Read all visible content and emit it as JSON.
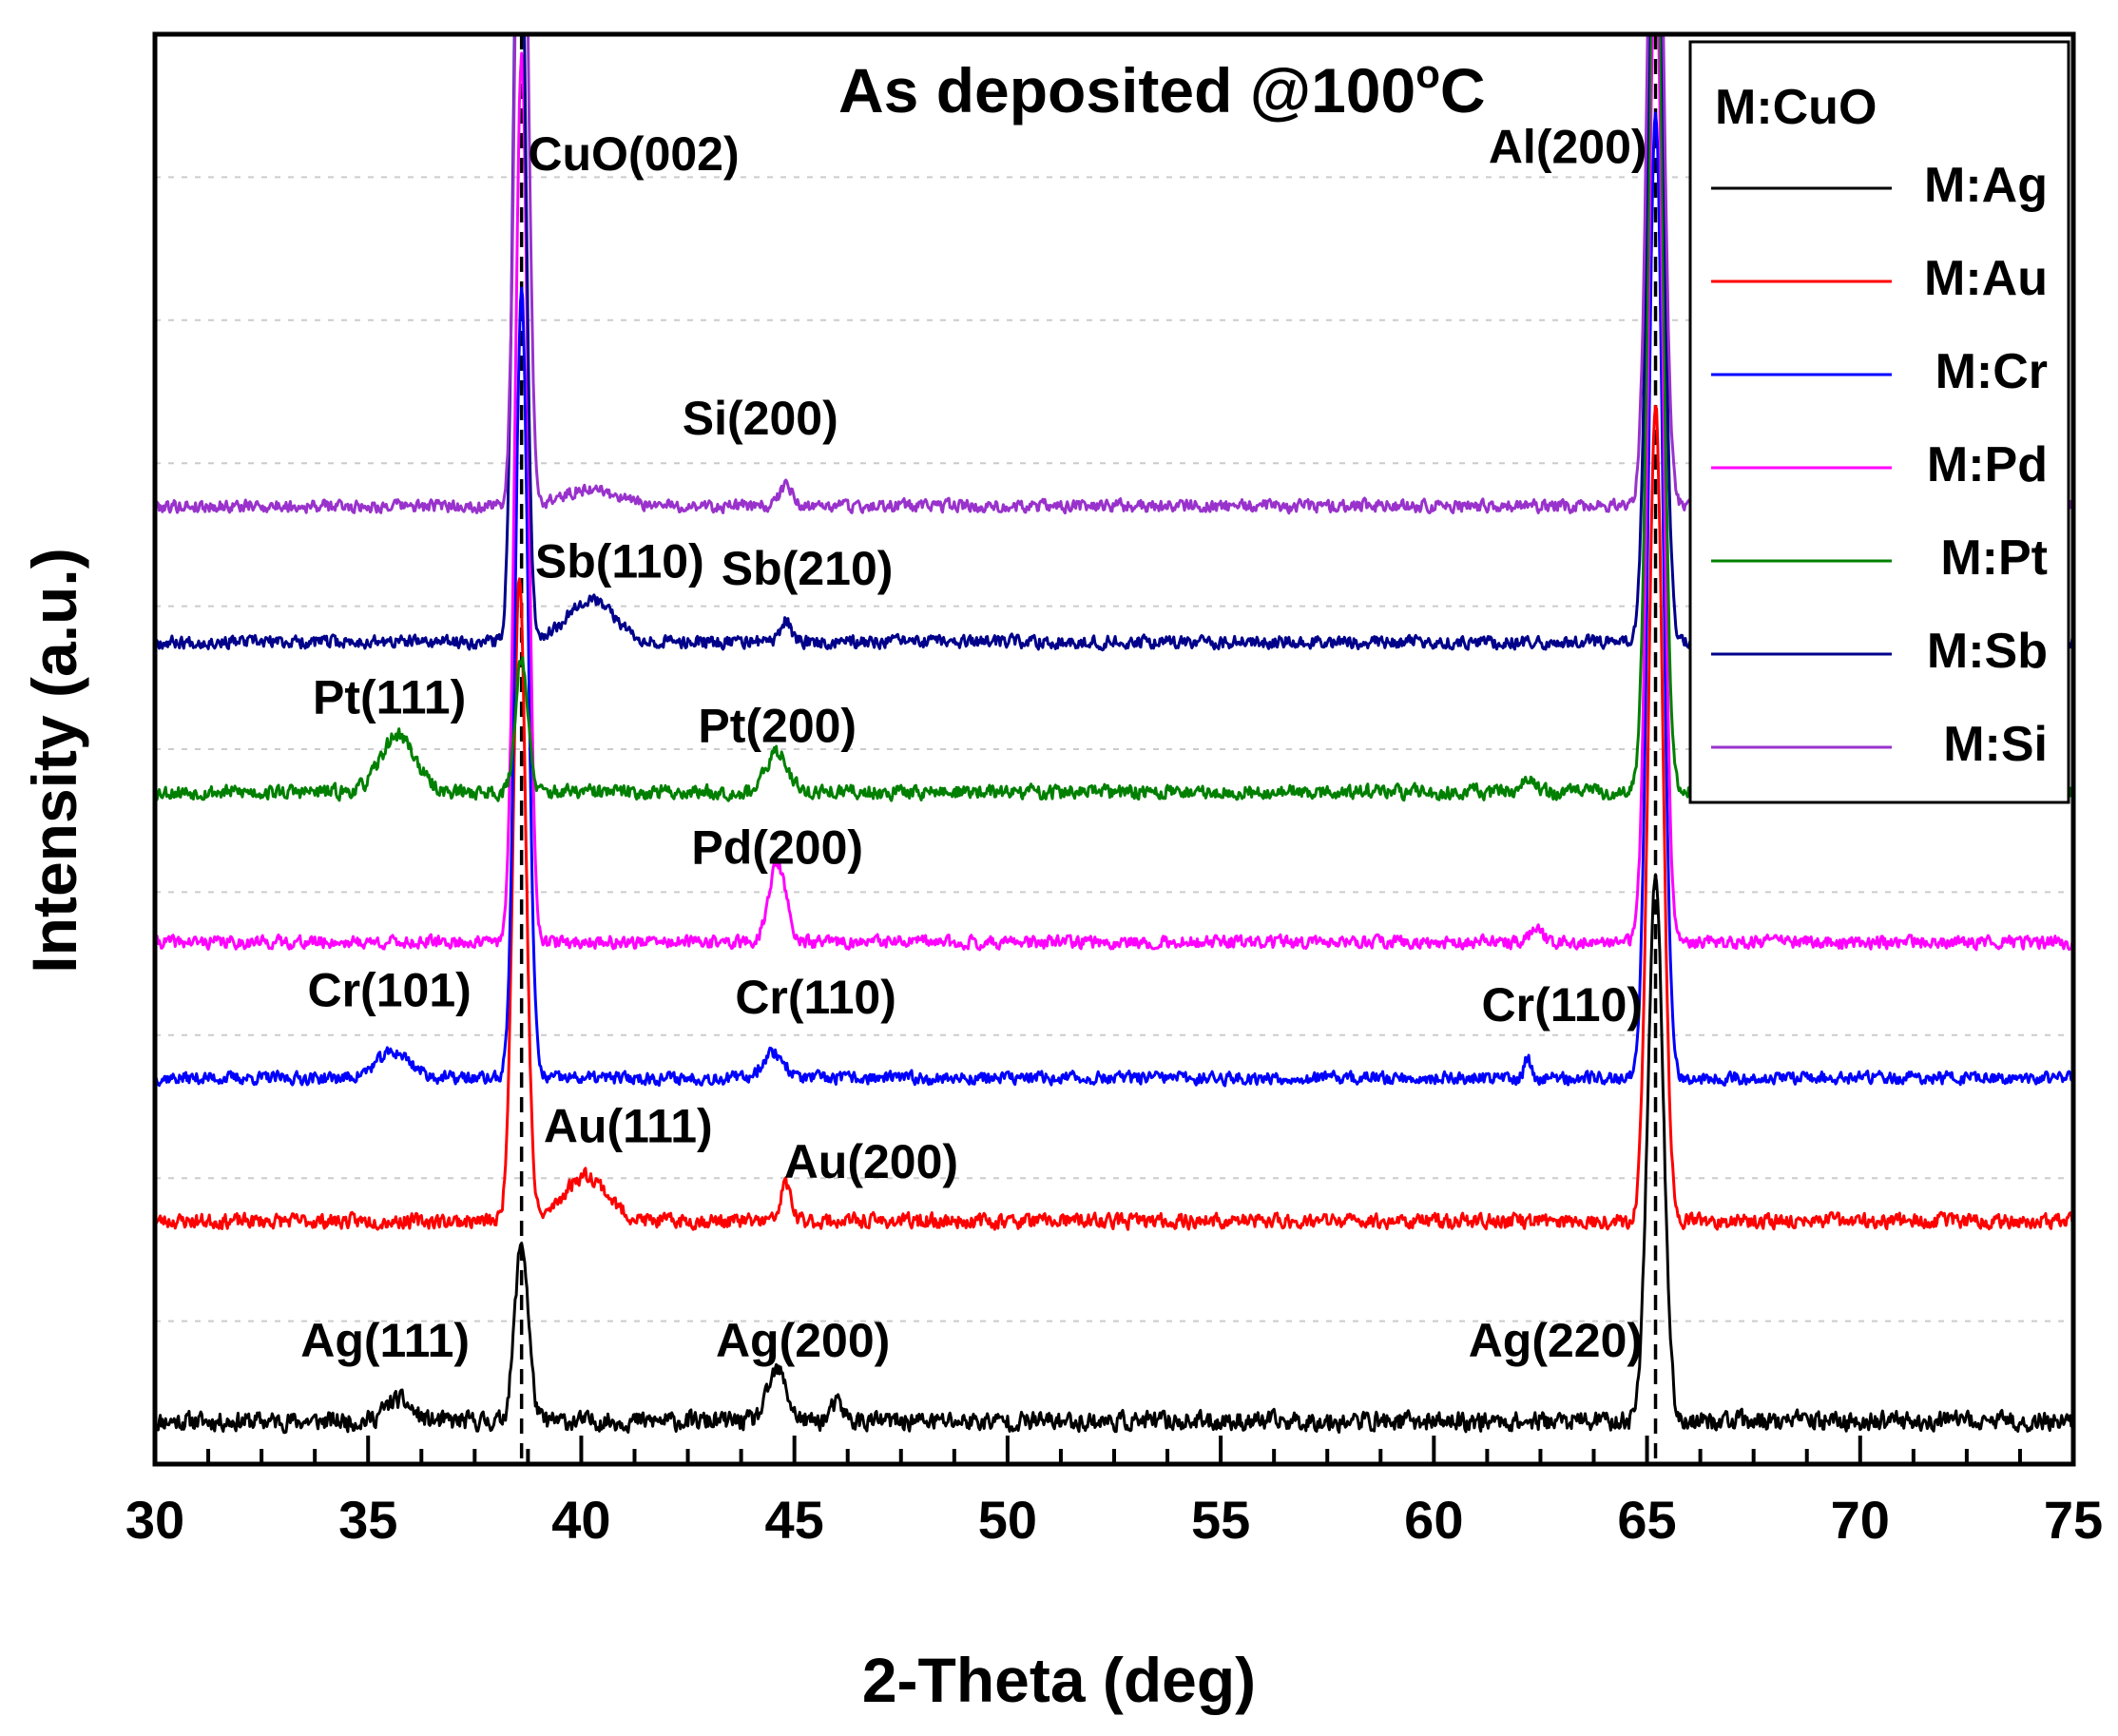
{
  "chart_data": {
    "type": "line",
    "title": "As deposited @100",
    "title_degree": "o",
    "title_unit": "C",
    "xlabel": "2-Theta (deg)",
    "ylabel": "Intensity (a.u.)",
    "xlim": [
      30,
      75
    ],
    "ylim": [
      0,
      100
    ],
    "x_ticks": [
      30,
      35,
      40,
      45,
      50,
      55,
      60,
      65,
      70,
      75
    ],
    "reference_lines": [
      38.6,
      65.2
    ],
    "legend": {
      "title": "M:CuO",
      "entries": [
        "M:Ag",
        "M:Au",
        "M:Cr",
        "M:Pd",
        "M:Pt",
        "M:Sb",
        "M:Si"
      ],
      "placement": "top-right"
    },
    "series": [
      {
        "name": "M:Ag",
        "color": "#000000",
        "baseline": 3.0,
        "noise": 0.9,
        "seed": 11,
        "peaks": [
          [
            38.6,
            12.5,
            0.16
          ],
          [
            65.2,
            38,
            0.18
          ],
          [
            35.7,
            1.5,
            0.3
          ],
          [
            44.6,
            3.5,
            0.22
          ],
          [
            46.0,
            1.2,
            0.15
          ]
        ]
      },
      {
        "name": "M:Au",
        "color": "#ff0000",
        "baseline": 17.0,
        "noise": 0.7,
        "seed": 23,
        "peaks": [
          [
            38.55,
            45,
            0.15
          ],
          [
            65.2,
            57,
            0.17
          ],
          [
            40.1,
            3.2,
            0.5
          ],
          [
            44.8,
            2.6,
            0.12
          ]
        ]
      },
      {
        "name": "M:Cr",
        "color": "#0000ff",
        "baseline": 27.0,
        "noise": 0.6,
        "seed": 37,
        "peaks": [
          [
            38.6,
            55,
            0.15
          ],
          [
            65.2,
            68,
            0.17
          ],
          [
            35.6,
            1.8,
            0.4
          ],
          [
            44.5,
            1.8,
            0.25
          ],
          [
            62.2,
            1.3,
            0.08
          ]
        ]
      },
      {
        "name": "M:Pd",
        "color": "#ff00ff",
        "baseline": 36.5,
        "noise": 0.6,
        "seed": 41,
        "peaks": [
          [
            38.6,
            62,
            0.15
          ],
          [
            65.2,
            70,
            0.17
          ],
          [
            44.6,
            5.5,
            0.2
          ],
          [
            62.4,
            1.0,
            0.15
          ]
        ]
      },
      {
        "name": "M:Pt",
        "color": "#008000",
        "baseline": 47.0,
        "noise": 0.7,
        "seed": 53,
        "peaks": [
          [
            38.6,
            9.5,
            0.14
          ],
          [
            65.2,
            66,
            0.17
          ],
          [
            35.7,
            4.0,
            0.4
          ],
          [
            44.6,
            2.8,
            0.25
          ],
          [
            62.2,
            1.2,
            0.12
          ]
        ]
      },
      {
        "name": "M:Sb",
        "color": "#00008b",
        "baseline": 57.5,
        "noise": 0.6,
        "seed": 67,
        "peaks": [
          [
            38.55,
            60,
            0.14
          ],
          [
            65.2,
            67,
            0.17
          ],
          [
            40.2,
            3.0,
            0.55
          ],
          [
            44.8,
            1.5,
            0.12
          ]
        ]
      },
      {
        "name": "M:Si",
        "color": "#9932cc",
        "baseline": 67.0,
        "noise": 0.6,
        "seed": 79,
        "peaks": [
          [
            38.6,
            60,
            0.14
          ],
          [
            65.2,
            60,
            0.17
          ],
          [
            40.2,
            1.2,
            0.6
          ],
          [
            44.8,
            1.4,
            0.15
          ]
        ]
      }
    ],
    "annotations": [
      {
        "text": "CuO(002)",
        "x": 38.75,
        "y": 90.5,
        "anchor": "start"
      },
      {
        "text": "Al(200)",
        "x": 65.0,
        "y": 91.0,
        "anchor": "end"
      },
      {
        "text": "Si(200)",
        "x": 44.2,
        "y": 72.0,
        "anchor": "middle"
      },
      {
        "text": "Sb(110)",
        "x": 40.9,
        "y": 62.0,
        "anchor": "middle"
      },
      {
        "text": "Sb(210)",
        "x": 45.3,
        "y": 61.5,
        "anchor": "middle"
      },
      {
        "text": "Pt(111)",
        "x": 35.5,
        "y": 52.5,
        "anchor": "middle"
      },
      {
        "text": "Pt(200)",
        "x": 44.6,
        "y": 50.5,
        "anchor": "middle"
      },
      {
        "text": "Pd(200)",
        "x": 44.6,
        "y": 42.0,
        "anchor": "middle"
      },
      {
        "text": "Cr(101)",
        "x": 35.5,
        "y": 32.0,
        "anchor": "middle"
      },
      {
        "text": "Cr(110)",
        "x": 45.5,
        "y": 31.5,
        "anchor": "middle"
      },
      {
        "text": "Cr(110)",
        "x": 64.9,
        "y": 31.0,
        "anchor": "end"
      },
      {
        "text": "Au(111)",
        "x": 41.1,
        "y": 22.5,
        "anchor": "middle"
      },
      {
        "text": "Au(200)",
        "x": 46.8,
        "y": 20.0,
        "anchor": "middle"
      },
      {
        "text": "Ag(111)",
        "x": 35.4,
        "y": 7.5,
        "anchor": "middle"
      },
      {
        "text": "Ag(200)",
        "x": 45.2,
        "y": 7.5,
        "anchor": "middle"
      },
      {
        "text": "Ag(220)",
        "x": 64.9,
        "y": 7.5,
        "anchor": "end"
      }
    ]
  }
}
